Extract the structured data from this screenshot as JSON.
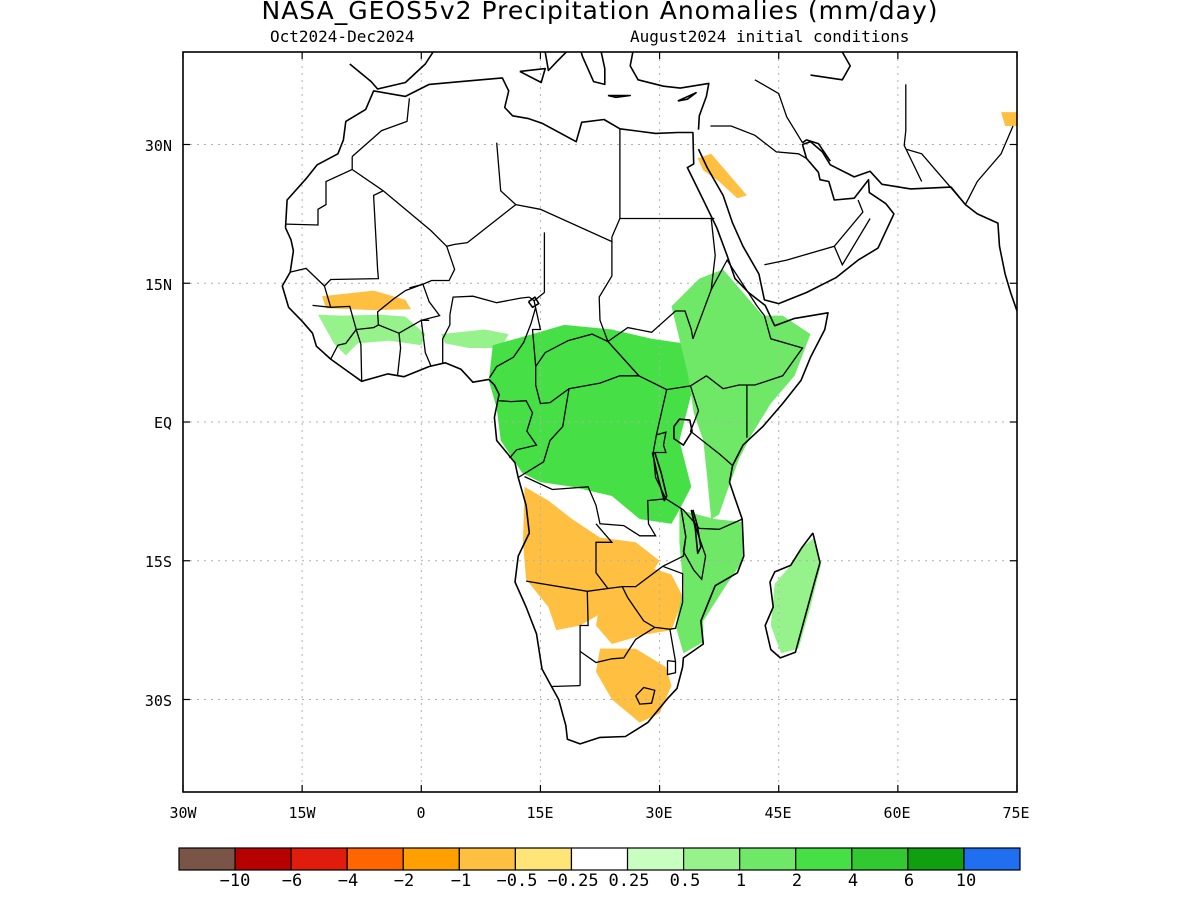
{
  "title": "NASA_GEOS5v2 Precipitation Anomalies (mm/day)",
  "subtitle_left": "Oct2024-Dec2024",
  "subtitle_right": "August2024 initial conditions",
  "map": {
    "lon_range": [
      -30,
      75
    ],
    "lat_range": [
      -40,
      40
    ],
    "lon_ticks": [
      "30W",
      "15W",
      "0",
      "15E",
      "30E",
      "45E",
      "60E",
      "75E"
    ],
    "lat_ticks": [
      "30N",
      "15N",
      "EQ",
      "15S",
      "30S"
    ],
    "grid": true
  },
  "colorbar": {
    "labels": [
      "−10",
      "−6",
      "−4",
      "−2",
      "−1",
      "−0.5",
      "−0.25",
      "0.25",
      "0.5",
      "1",
      "2",
      "4",
      "6",
      "10"
    ],
    "colors": [
      "#7a5547",
      "#b70000",
      "#e01c0c",
      "#ff6600",
      "#ffa000",
      "#ffbf40",
      "#ffe478",
      "#ffffff",
      "#c8ffc0",
      "#96f28a",
      "#6ee866",
      "#46e046",
      "#32c832",
      "#0f9f0f",
      "#1f6ff0"
    ]
  },
  "anomaly_regions": [
    {
      "name": "west-sahel-dry",
      "level": "-0.5",
      "color": "#ffbf40"
    },
    {
      "name": "west-africa-coast-wet",
      "level": "0.5",
      "color": "#96f28a"
    },
    {
      "name": "central-africa-wet",
      "level": "2",
      "color": "#46e046"
    },
    {
      "name": "east-africa-wet",
      "level": "1",
      "color": "#6ee866"
    },
    {
      "name": "angola-dry",
      "level": "-0.5",
      "color": "#ffbf40"
    },
    {
      "name": "zambia-zimbabwe-dry",
      "level": "-0.5",
      "color": "#ffbf40"
    },
    {
      "name": "south-africa-dry",
      "level": "-0.5",
      "color": "#ffbf40"
    },
    {
      "name": "mozambique-wet",
      "level": "1",
      "color": "#6ee866"
    },
    {
      "name": "madagascar-wet",
      "level": "0.5",
      "color": "#96f28a"
    },
    {
      "name": "red-sea-dry",
      "level": "-0.5",
      "color": "#ffbf40"
    }
  ]
}
